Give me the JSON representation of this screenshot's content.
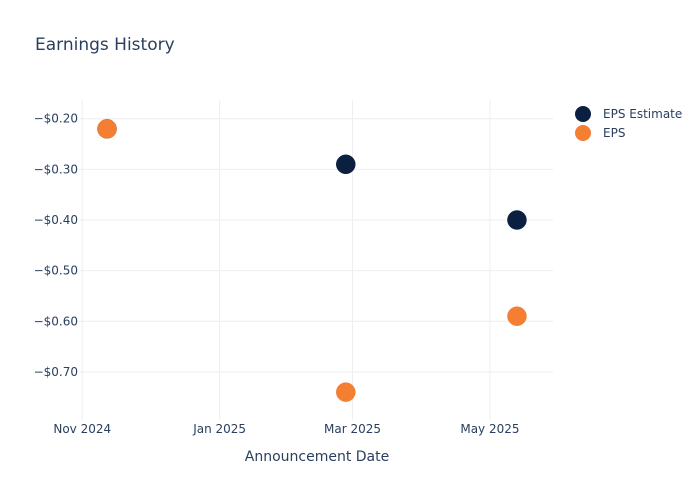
{
  "chart_data": {
    "type": "scatter",
    "title": "Earnings History",
    "xlabel": "Announcement Date",
    "ylabel": "",
    "x_ticks": [
      {
        "date": "2024-11-01",
        "label": "Nov 2024"
      },
      {
        "date": "2025-01-01",
        "label": "Jan 2025"
      },
      {
        "date": "2025-03-01",
        "label": "Mar 2025"
      },
      {
        "date": "2025-05-01",
        "label": "May 2025"
      }
    ],
    "y_ticks": [
      {
        "value": -0.2,
        "label": "−$0.20"
      },
      {
        "value": -0.3,
        "label": "−$0.30"
      },
      {
        "value": -0.4,
        "label": "−$0.40"
      },
      {
        "value": -0.5,
        "label": "−$0.50"
      },
      {
        "value": -0.6,
        "label": "−$0.60"
      },
      {
        "value": -0.7,
        "label": "−$0.70"
      }
    ],
    "xlim": [
      "2024-10-31",
      "2025-05-29"
    ],
    "ylim": [
      -0.795,
      -0.163
    ],
    "grid": true,
    "legend_position": "top-right",
    "series": [
      {
        "name": "EPS Estimate",
        "color": "#0b1f40",
        "points": [
          {
            "x": "2024-11-12",
            "y": -0.22
          },
          {
            "x": "2025-02-26",
            "y": -0.29
          },
          {
            "x": "2025-05-13",
            "y": -0.4
          }
        ]
      },
      {
        "name": "EPS",
        "color": "#f47e32",
        "points": [
          {
            "x": "2024-11-12",
            "y": -0.22
          },
          {
            "x": "2025-02-26",
            "y": -0.74
          },
          {
            "x": "2025-05-13",
            "y": -0.59
          }
        ]
      }
    ]
  }
}
